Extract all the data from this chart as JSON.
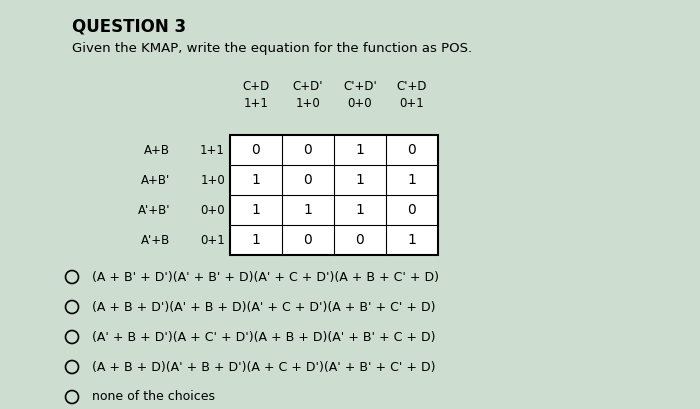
{
  "title": "QUESTION 3",
  "subtitle": "Given the KMAP, write the equation for the function as POS.",
  "bg_color": "#cdddd0",
  "col_headers_top": [
    "C+D",
    "C+D'",
    "C'+D'",
    "C'+D"
  ],
  "col_headers_sub": [
    "1+1",
    "1+0",
    "0+0",
    "0+1"
  ],
  "row_headers_left": [
    "A+B",
    "A+B'",
    "A'+B'",
    "A'+B"
  ],
  "row_headers_sub": [
    "1+1",
    "1+0",
    "0+0",
    "0+1"
  ],
  "kmap_values": [
    [
      0,
      0,
      1,
      0
    ],
    [
      1,
      0,
      1,
      1
    ],
    [
      1,
      1,
      1,
      0
    ],
    [
      1,
      0,
      0,
      1
    ]
  ],
  "options": [
    "(A + B' + D')(A' + B' + D)(A' + C + D')(A + B + C' + D)",
    "(A + B + D')(A' + B + D)(A' + C + D')(A + B' + C' + D)",
    "(A' + B + D')(A + C' + D')(A + B + D)(A' + B' + C + D)",
    "(A + B + D)(A' + B + D')(A + C + D')(A' + B' + C' + D)",
    "none of the choices"
  ]
}
